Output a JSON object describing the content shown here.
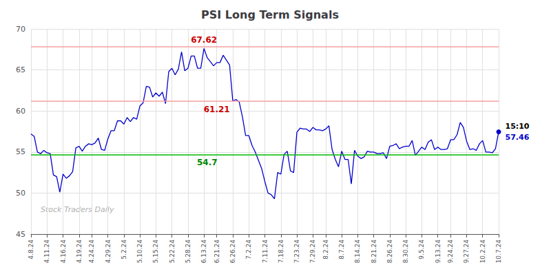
{
  "chart_data": {
    "type": "line",
    "title": "PSI Long Term Signals",
    "grid": true,
    "ylim": [
      45,
      70
    ],
    "yticks": [
      45,
      50,
      55,
      60,
      65,
      70
    ],
    "color": "#0000cc",
    "categories": [
      "4.8.24",
      null,
      null,
      null,
      null,
      "4.11.24",
      null,
      null,
      null,
      null,
      "4.16.24",
      null,
      null,
      null,
      null,
      "4.19.24",
      null,
      null,
      null,
      "4.24.24",
      null,
      null,
      null,
      null,
      "4.29.24",
      null,
      null,
      null,
      null,
      "5.2.24",
      null,
      null,
      null,
      null,
      "5.10.24",
      null,
      null,
      null,
      null,
      "5.15.24",
      null,
      null,
      null,
      null,
      "5.22.24",
      null,
      null,
      null,
      null,
      "5.28.24",
      null,
      null,
      null,
      null,
      "6.13.24",
      null,
      null,
      null,
      "6.21.24",
      null,
      null,
      null,
      null,
      "6.26.24",
      null,
      null,
      null,
      null,
      "7.2.24",
      null,
      null,
      null,
      null,
      "7.11.24",
      null,
      null,
      null,
      null,
      "7.18.24",
      null,
      null,
      null,
      null,
      "7.23.24",
      null,
      null,
      null,
      null,
      "7.29.24",
      null,
      null,
      null,
      "8.2.24",
      null,
      null,
      null,
      null,
      "8.7.24",
      null,
      null,
      null,
      null,
      "8.14.24",
      null,
      null,
      null,
      null,
      "8.21.24",
      null,
      null,
      null,
      null,
      "8.26.24",
      null,
      null,
      null,
      null,
      "8.30.24",
      null,
      null,
      null,
      null,
      "9.5.24",
      null,
      null,
      null,
      null,
      "9.13.24",
      null,
      null,
      null,
      "9.24.24",
      null,
      null,
      null,
      null,
      "9.27.24",
      null,
      null,
      null,
      null,
      "10.2.24",
      null,
      null,
      null,
      null,
      "10.7.24"
    ],
    "values": [
      57.2,
      56.9,
      55.0,
      54.8,
      55.2,
      54.9,
      54.8,
      52.2,
      52.0,
      50.1,
      52.3,
      51.8,
      52.1,
      52.6,
      55.5,
      55.7,
      55.1,
      55.7,
      56.0,
      55.9,
      56.1,
      56.7,
      55.3,
      55.2,
      56.6,
      57.6,
      57.6,
      58.8,
      58.8,
      58.4,
      59.2,
      58.7,
      59.2,
      59.0,
      60.6,
      61.0,
      63.0,
      62.9,
      61.7,
      62.2,
      61.8,
      62.3,
      60.9,
      64.8,
      65.2,
      64.4,
      65.1,
      67.2,
      64.9,
      65.2,
      66.7,
      66.7,
      65.2,
      65.2,
      67.62,
      66.5,
      66.0,
      65.5,
      65.9,
      65.9,
      66.8,
      66.2,
      65.6,
      61.21,
      61.4,
      61.1,
      59.3,
      57.0,
      57.0,
      55.8,
      55.0,
      54.0,
      53.0,
      51.4,
      50.0,
      49.8,
      49.3,
      52.5,
      52.3,
      54.7,
      55.1,
      52.7,
      52.5,
      57.4,
      57.9,
      57.8,
      57.8,
      57.5,
      58.0,
      57.7,
      57.7,
      57.6,
      57.8,
      58.2,
      55.3,
      54.1,
      53.2,
      55.1,
      54.1,
      54.1,
      51.1,
      55.2,
      54.5,
      54.2,
      54.4,
      55.1,
      55.0,
      55.0,
      54.8,
      54.8,
      54.9,
      54.2,
      55.7,
      55.8,
      56.0,
      55.4,
      55.6,
      55.7,
      55.7,
      56.4,
      54.6,
      55.1,
      55.6,
      55.3,
      56.2,
      56.5,
      55.3,
      55.6,
      55.3,
      55.3,
      55.4,
      56.5,
      56.5,
      57.1,
      58.6,
      58.0,
      56.3,
      55.3,
      55.4,
      55.2,
      56.0,
      56.4,
      55.0,
      55.0,
      54.9,
      55.4,
      57.46
    ],
    "reference_lines": [
      {
        "value": 67.8,
        "color": "#f5a0a0"
      },
      {
        "value": 61.2,
        "color": "#f5a0a0"
      },
      {
        "value": 54.7,
        "color": "#00bb00"
      }
    ],
    "annotations": [
      {
        "text": "67.62",
        "x": 54,
        "y": 67.62,
        "color": "#cc0000",
        "position": "above"
      },
      {
        "text": "61.21",
        "x": 58,
        "y": 61.21,
        "color": "#cc0000",
        "position": "below"
      },
      {
        "text": "54.7",
        "x": 55,
        "y": 54.7,
        "color": "#008800",
        "position": "below"
      }
    ],
    "last_point": {
      "time": "15:10",
      "value": 57.46,
      "value_label": "57.46"
    },
    "watermark": "Stock Traders Daily"
  }
}
